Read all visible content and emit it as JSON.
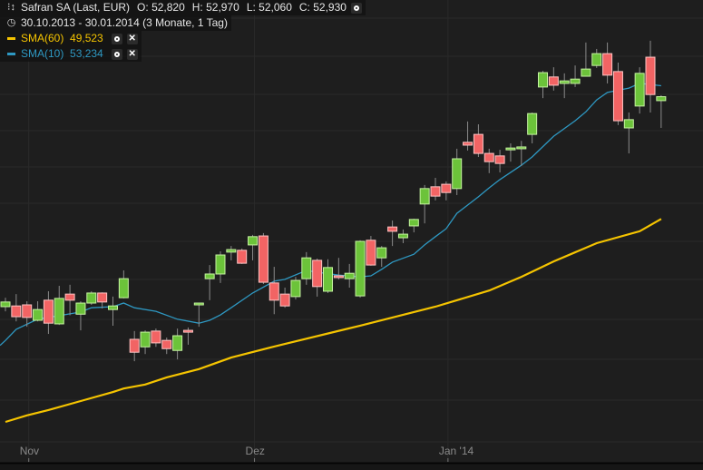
{
  "header": {
    "instrument": "Safran SA (Last, EUR)",
    "open_label": "O:",
    "open": "52,820",
    "high_label": "H:",
    "high": "52,970",
    "low_label": "L:",
    "low": "52,060",
    "close_label": "C:",
    "close": "52,930",
    "range": "30.10.2013 - 30.01.2014 (3 Monate, 1 Tag)",
    "icons": {
      "instrument": "chart-settings-icon",
      "range": "clock-icon",
      "settings": "circle-settings-icon",
      "remove": "close-icon"
    }
  },
  "indicators": [
    {
      "label": "SMA(60)",
      "value": "49,523",
      "color": "#f5c400"
    },
    {
      "label": "SMA(10)",
      "value": "53,234",
      "color": "#2e98c2"
    }
  ],
  "colors": {
    "background": "#1e1e1e",
    "grid": "#2a2a2a",
    "up": "#6cc33a",
    "up_border": "#c6f3a2",
    "down": "#f26464",
    "down_border": "#ffc4c4",
    "axis_text": "#8a8a8a"
  },
  "chart_data": {
    "type": "candlestick",
    "grid": true,
    "x_ticks": [
      {
        "label": "Nov",
        "index": 2
      },
      {
        "label": "Dez",
        "index": 23
      },
      {
        "label": "Jan '14",
        "index": 41
      }
    ],
    "candles": [
      [
        47.08,
        47.33,
        46.95,
        47.21
      ],
      [
        47.1,
        47.43,
        46.67,
        46.8
      ],
      [
        47.13,
        47.23,
        46.52,
        46.78
      ],
      [
        46.7,
        47.23,
        46.67,
        47.0
      ],
      [
        47.26,
        47.51,
        46.32,
        46.62
      ],
      [
        46.6,
        47.66,
        46.57,
        47.31
      ],
      [
        47.43,
        47.69,
        46.84,
        47.26
      ],
      [
        46.87,
        47.23,
        46.42,
        47.18
      ],
      [
        47.18,
        47.51,
        47.13,
        47.46
      ],
      [
        47.46,
        47.48,
        47.03,
        47.21
      ],
      [
        47.0,
        47.36,
        46.55,
        47.1
      ],
      [
        47.33,
        48.09,
        47.31,
        47.86
      ],
      [
        46.17,
        46.4,
        45.56,
        45.81
      ],
      [
        45.96,
        46.42,
        45.76,
        46.37
      ],
      [
        46.4,
        46.47,
        45.96,
        46.07
      ],
      [
        46.14,
        46.22,
        45.76,
        45.91
      ],
      [
        45.86,
        46.47,
        45.61,
        46.27
      ],
      [
        46.42,
        46.5,
        46.02,
        46.4
      ],
      [
        47.15,
        47.18,
        46.52,
        47.18
      ],
      [
        47.86,
        48.24,
        47.26,
        47.99
      ],
      [
        47.99,
        48.62,
        47.74,
        48.52
      ],
      [
        48.6,
        48.77,
        48.37,
        48.67
      ],
      [
        48.65,
        48.7,
        48.27,
        48.29
      ],
      [
        48.8,
        49.08,
        48.37,
        49.03
      ],
      [
        49.05,
        49.13,
        47.71,
        47.76
      ],
      [
        47.74,
        48.19,
        46.87,
        47.26
      ],
      [
        47.43,
        47.61,
        47.05,
        47.1
      ],
      [
        47.36,
        47.91,
        47.28,
        47.81
      ],
      [
        47.86,
        48.6,
        47.69,
        48.44
      ],
      [
        48.37,
        48.42,
        47.36,
        47.64
      ],
      [
        47.51,
        48.4,
        47.46,
        48.17
      ],
      [
        47.94,
        48.44,
        47.84,
        47.89
      ],
      [
        47.86,
        48.27,
        47.61,
        48.01
      ],
      [
        47.38,
        48.93,
        47.33,
        48.9
      ],
      [
        48.93,
        49.05,
        48.22,
        48.24
      ],
      [
        48.44,
        48.77,
        48.19,
        48.72
      ],
      [
        49.3,
        49.48,
        48.77,
        49.18
      ],
      [
        49.0,
        49.23,
        48.85,
        49.1
      ],
      [
        49.33,
        49.53,
        49.15,
        49.51
      ],
      [
        49.94,
        50.47,
        49.4,
        50.37
      ],
      [
        50.42,
        50.67,
        50.04,
        50.16
      ],
      [
        50.49,
        50.57,
        50.04,
        50.26
      ],
      [
        50.37,
        51.48,
        50.19,
        51.2
      ],
      [
        51.66,
        52.24,
        51.43,
        51.58
      ],
      [
        51.88,
        52.16,
        51.25,
        51.35
      ],
      [
        51.35,
        51.48,
        50.8,
        51.12
      ],
      [
        51.28,
        51.45,
        50.82,
        51.07
      ],
      [
        51.48,
        51.63,
        51.12,
        51.5
      ],
      [
        51.5,
        51.7,
        51.0,
        51.53
      ],
      [
        51.88,
        52.49,
        51.63,
        52.46
      ],
      [
        53.2,
        53.65,
        52.89,
        53.6
      ],
      [
        53.48,
        53.75,
        53.1,
        53.25
      ],
      [
        53.3,
        53.58,
        52.89,
        53.37
      ],
      [
        53.3,
        53.8,
        53.2,
        53.42
      ],
      [
        53.5,
        54.44,
        53.5,
        53.7
      ],
      [
        53.8,
        54.26,
        53.73,
        54.13
      ],
      [
        54.13,
        54.44,
        53.3,
        53.53
      ],
      [
        53.63,
        53.88,
        52.14,
        52.26
      ],
      [
        52.06,
        52.49,
        51.35,
        52.29
      ],
      [
        52.67,
        53.75,
        52.46,
        53.58
      ],
      [
        54.03,
        54.49,
        52.49,
        52.99
      ],
      [
        52.82,
        52.97,
        52.06,
        52.93
      ]
    ],
    "candle_format": [
      "open",
      "high",
      "low",
      "close"
    ],
    "series": [
      {
        "name": "SMA(60)",
        "color": "#f5c400",
        "points": [
          [
            0,
            43.87
          ],
          [
            2,
            44.05
          ],
          [
            4,
            44.2
          ],
          [
            7,
            44.45
          ],
          [
            10,
            44.7
          ],
          [
            11,
            44.8
          ],
          [
            13,
            44.91
          ],
          [
            15,
            45.11
          ],
          [
            18,
            45.34
          ],
          [
            21,
            45.66
          ],
          [
            25,
            45.97
          ],
          [
            33,
            46.55
          ],
          [
            40,
            47.08
          ],
          [
            45,
            47.53
          ],
          [
            48,
            47.91
          ],
          [
            51,
            48.34
          ],
          [
            55,
            48.85
          ],
          [
            59,
            49.18
          ],
          [
            61,
            49.523
          ]
        ]
      },
      {
        "name": "SMA(10)",
        "color": "#2e98c2",
        "points": [
          [
            -0.5,
            46.0
          ],
          [
            0,
            46.14
          ],
          [
            1,
            46.45
          ],
          [
            3,
            46.73
          ],
          [
            5,
            46.83
          ],
          [
            7,
            46.93
          ],
          [
            8,
            47.05
          ],
          [
            10,
            47.08
          ],
          [
            11,
            47.18
          ],
          [
            12,
            47.05
          ],
          [
            14,
            46.95
          ],
          [
            16,
            46.73
          ],
          [
            18,
            46.62
          ],
          [
            19,
            46.7
          ],
          [
            20,
            46.85
          ],
          [
            21,
            47.05
          ],
          [
            23,
            47.46
          ],
          [
            25,
            47.79
          ],
          [
            26,
            47.84
          ],
          [
            28,
            48.09
          ],
          [
            29,
            48.04
          ],
          [
            31,
            47.96
          ],
          [
            33,
            47.91
          ],
          [
            34,
            47.94
          ],
          [
            35,
            48.12
          ],
          [
            36,
            48.32
          ],
          [
            38,
            48.54
          ],
          [
            39,
            48.8
          ],
          [
            40,
            49.03
          ],
          [
            41,
            49.25
          ],
          [
            42,
            49.68
          ],
          [
            44,
            50.14
          ],
          [
            45,
            50.39
          ],
          [
            46,
            50.62
          ],
          [
            48,
            51.02
          ],
          [
            49,
            51.25
          ],
          [
            51,
            51.83
          ],
          [
            53,
            52.26
          ],
          [
            54,
            52.51
          ],
          [
            55,
            52.84
          ],
          [
            56,
            53.05
          ],
          [
            58,
            53.17
          ],
          [
            59,
            53.3
          ],
          [
            60,
            53.27
          ],
          [
            61,
            53.234
          ]
        ]
      }
    ]
  }
}
